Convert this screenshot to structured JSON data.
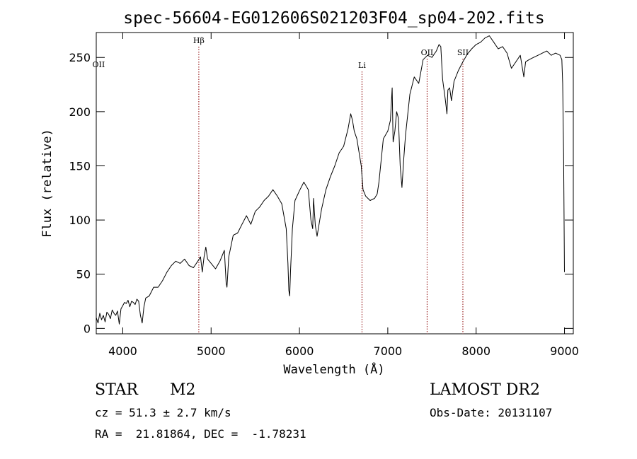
{
  "chart_data": {
    "type": "line",
    "title": "spec-56604-EG012606S021203F04_sp04-202.fits",
    "xlabel": "Wavelength (Å)",
    "ylabel": "Flux (relative)",
    "xlim": [
      3700,
      9100
    ],
    "ylim": [
      -5,
      273
    ],
    "x_ticks": [
      4000,
      5000,
      6000,
      7000,
      8000,
      9000
    ],
    "y_ticks": [
      0,
      50,
      100,
      150,
      200,
      250
    ],
    "grid": false,
    "series": [
      {
        "x": [
          3700,
          3720,
          3740,
          3760,
          3780,
          3800,
          3820,
          3840,
          3860,
          3880,
          3900,
          3920,
          3940,
          3960,
          3980,
          4000,
          4020,
          4040,
          4060,
          4080,
          4100,
          4120,
          4140,
          4160,
          4180,
          4200,
          4220,
          4230,
          4240,
          4260,
          4300,
          4350,
          4400,
          4450,
          4500,
          4550,
          4600,
          4650,
          4700,
          4750,
          4800,
          4850,
          4880,
          4900,
          4920,
          4940,
          4960,
          5000,
          5050,
          5100,
          5150,
          5170,
          5180,
          5200,
          5250,
          5300,
          5350,
          5400,
          5450,
          5500,
          5550,
          5600,
          5650,
          5700,
          5750,
          5800,
          5850,
          5870,
          5880,
          5890,
          5900,
          5910,
          5920,
          5950,
          6000,
          6050,
          6100,
          6130,
          6150,
          6160,
          6180,
          6200,
          6250,
          6300,
          6350,
          6400,
          6450,
          6500,
          6550,
          6580,
          6600,
          6620,
          6650,
          6700,
          6720,
          6750,
          6800,
          6850,
          6880,
          6900,
          6950,
          7000,
          7030,
          7050,
          7060,
          7080,
          7100,
          7120,
          7140,
          7160,
          7180,
          7200,
          7250,
          7300,
          7350,
          7400,
          7450,
          7500,
          7550,
          7580,
          7600,
          7620,
          7650,
          7670,
          7680,
          7700,
          7720,
          7750,
          7800,
          7850,
          7900,
          7950,
          8000,
          8050,
          8100,
          8150,
          8200,
          8250,
          8300,
          8350,
          8400,
          8450,
          8500,
          8540,
          8560,
          8600,
          8650,
          8700,
          8750,
          8800,
          8850,
          8900,
          8950,
          8970,
          8980,
          8990,
          9000
        ],
        "y": [
          10,
          5,
          14,
          8,
          12,
          6,
          15,
          13,
          9,
          17,
          14,
          12,
          16,
          4,
          18,
          21,
          24,
          23,
          26,
          20,
          25,
          24,
          22,
          27,
          25,
          12,
          5,
          13,
          20,
          28,
          30,
          38,
          38,
          44,
          52,
          58,
          62,
          60,
          64,
          58,
          56,
          62,
          66,
          52,
          66,
          75,
          64,
          60,
          55,
          62,
          72,
          42,
          38,
          66,
          86,
          88,
          96,
          104,
          96,
          108,
          112,
          118,
          122,
          128,
          122,
          115,
          92,
          60,
          35,
          30,
          55,
          72,
          92,
          118,
          127,
          135,
          128,
          100,
          92,
          120,
          95,
          85,
          110,
          128,
          140,
          150,
          162,
          168,
          184,
          198,
          192,
          182,
          175,
          150,
          128,
          122,
          118,
          120,
          124,
          135,
          175,
          182,
          192,
          222,
          172,
          182,
          200,
          194,
          150,
          130,
          156,
          178,
          216,
          232,
          226,
          248,
          252,
          250,
          256,
          262,
          260,
          230,
          212,
          198,
          220,
          222,
          210,
          228,
          238,
          246,
          253,
          258,
          262,
          264,
          268,
          270,
          264,
          258,
          260,
          254,
          240,
          246,
          252,
          232,
          246,
          248,
          250,
          252,
          254,
          256,
          252,
          254,
          252,
          248,
          226,
          160,
          52
        ]
      }
    ],
    "annotations": [
      {
        "label": "OII",
        "x": 3727
      },
      {
        "label": "Hβ",
        "x": 4861
      },
      {
        "label": "Li",
        "x": 6708
      },
      {
        "label": "OII",
        "x": 7445
      },
      {
        "label": "SII",
        "x": 7850
      }
    ]
  },
  "info": {
    "object_class": "STAR",
    "subclass": "M2",
    "survey": "LAMOST DR2",
    "redshift": "cz = 51.3 ± 2.7 km/s",
    "obs_date": "Obs-Date: 20131107",
    "coords": "RA =  21.81864, DEC =  -1.78231"
  }
}
